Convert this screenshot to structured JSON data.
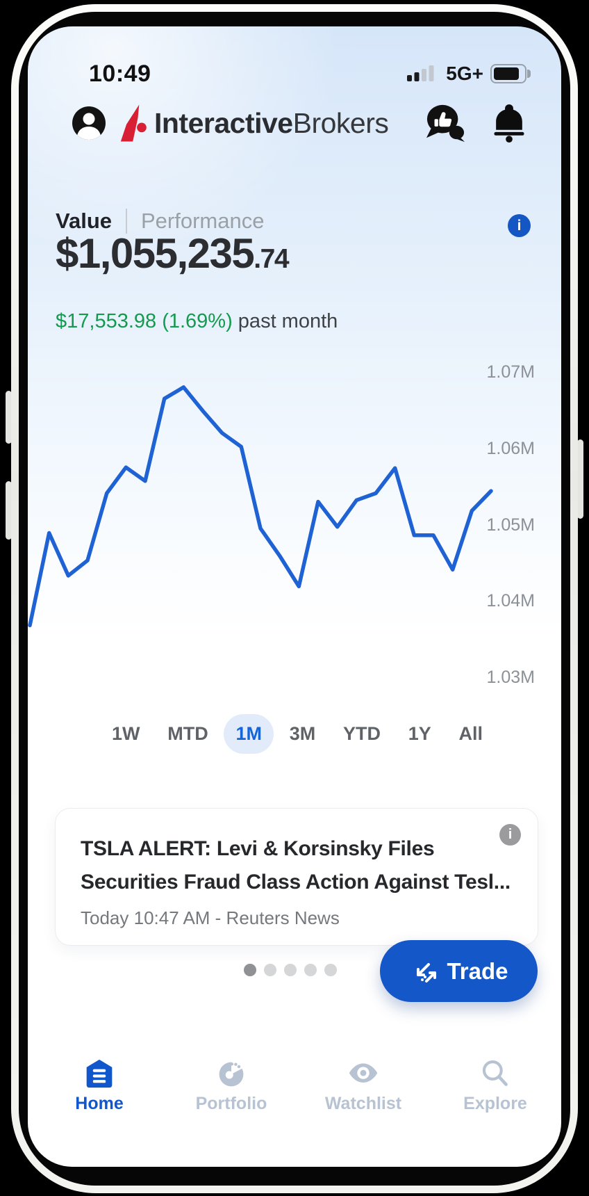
{
  "status_bar": {
    "time": "10:49",
    "network": "5G+"
  },
  "header": {
    "brand": {
      "bold": "Interactive",
      "regular": "Brokers"
    }
  },
  "summary": {
    "tabs": [
      {
        "label": "Value",
        "active": true
      },
      {
        "label": "Performance",
        "active": false
      }
    ],
    "value_main": "$1,055,235",
    "value_cents": ".74",
    "change": "$17,553.98 (1.69%)",
    "change_period": " past month"
  },
  "chart_data": {
    "type": "line",
    "title": "",
    "xlabel": "",
    "ylabel": "",
    "x_period": "past month",
    "y_ticks": [
      "1.07M",
      "1.06M",
      "1.05M",
      "1.04M",
      "1.03M"
    ],
    "ylim": [
      1.03,
      1.07
    ],
    "unit": "millions USD",
    "line_color": "#1E62D3",
    "grid": false,
    "legend": false,
    "values_millions": [
      1.0369,
      1.049,
      1.0434,
      1.0454,
      1.0542,
      1.0576,
      1.0558,
      1.0666,
      1.0681,
      1.065,
      1.0621,
      1.0603,
      1.0496,
      1.046,
      1.042,
      1.0531,
      1.0498,
      1.0533,
      1.0542,
      1.0575,
      1.0487,
      1.0487,
      1.0442,
      1.0519,
      1.0545
    ]
  },
  "range_selector": {
    "options": [
      "1W",
      "MTD",
      "1M",
      "3M",
      "YTD",
      "1Y",
      "All"
    ],
    "selected": "1M"
  },
  "news_card": {
    "title_line1": "TSLA ALERT: Levi & Korsinsky Files",
    "title_line2": "Securities Fraud Class Action Against Tesl...",
    "meta": "Today 10:47 AM - Reuters News"
  },
  "carousel": {
    "dot_count": 5,
    "active_index": 0
  },
  "trade": {
    "label": "Trade"
  },
  "bottom_nav": {
    "items": [
      {
        "label": "Home",
        "icon": "home",
        "active": true
      },
      {
        "label": "Portfolio",
        "icon": "portfolio",
        "active": false
      },
      {
        "label": "Watchlist",
        "icon": "watchlist",
        "active": false
      },
      {
        "label": "Explore",
        "icon": "explore",
        "active": false
      }
    ]
  },
  "colors": {
    "accent_blue": "#1457C8",
    "positive_green": "#149A4E",
    "info_blue": "#1356C4",
    "chart_blue": "#1E62D3",
    "nav_inactive": "#B7C3D2"
  }
}
